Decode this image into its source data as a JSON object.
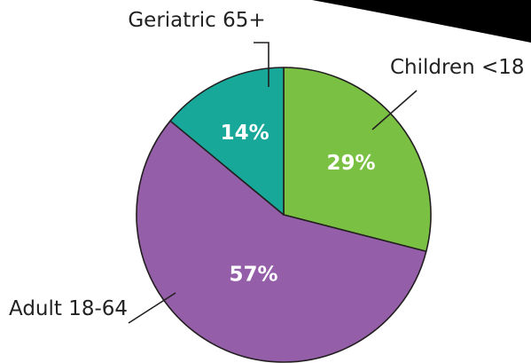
{
  "chart_data": {
    "type": "pie",
    "categories": [
      "Children <18",
      "Adult 18-64",
      "Geriatric 65+"
    ],
    "values": [
      29,
      57,
      14
    ],
    "value_labels": [
      "29%",
      "57%",
      "14%"
    ],
    "colors": [
      "#7ac143",
      "#945ea8",
      "#17a89a"
    ],
    "start_angle_deg": 0,
    "direction": "clockwise",
    "legend": "none"
  },
  "decoration": {
    "corner_swoosh_color": "#000000"
  }
}
